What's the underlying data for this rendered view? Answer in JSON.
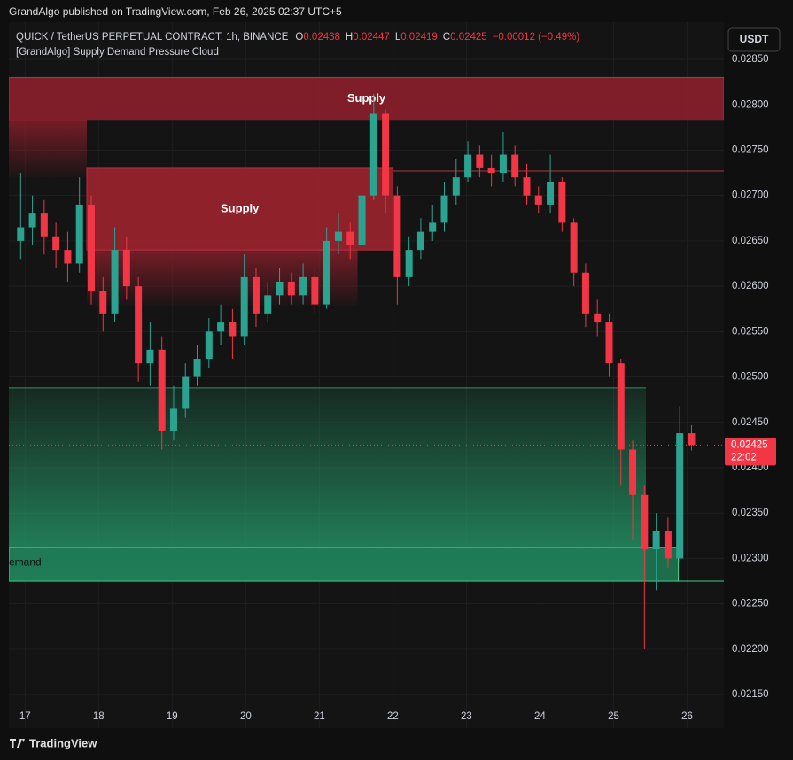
{
  "header": {
    "publisher": "GrandAlgo published on TradingView.com, Feb 26, 2025 02:37 UTC+5"
  },
  "legend": {
    "symbol": "QUICK / TetherUS PERPETUAL CONTRACT, 1h, BINANCE",
    "ohlc": [
      {
        "label": "O",
        "value": "0.02438"
      },
      {
        "label": "H",
        "value": "0.02447"
      },
      {
        "label": "L",
        "value": "0.02419"
      },
      {
        "label": "C",
        "value": "0.02425"
      }
    ],
    "change": "−0.00012 (−0.49%)",
    "indicator": "[GrandAlgo] Supply Demand Pressure Cloud"
  },
  "currency_button": "USDT",
  "footer": {
    "brand": "TradingView"
  },
  "chart_data": {
    "type": "candlestick",
    "x": [
      16.94,
      17.1,
      17.26,
      17.42,
      17.58,
      17.74,
      17.9,
      18.06,
      18.22,
      18.38,
      18.54,
      18.7,
      18.86,
      19.02,
      19.18,
      19.34,
      19.5,
      19.66,
      19.82,
      19.98,
      20.14,
      20.3,
      20.46,
      20.62,
      20.78,
      20.94,
      21.1,
      21.26,
      21.42,
      21.58,
      21.74,
      21.9,
      22.06,
      22.22,
      22.38,
      22.54,
      22.7,
      22.86,
      23.02,
      23.18,
      23.34,
      23.5,
      23.66,
      23.82,
      23.98,
      24.14,
      24.3,
      24.46,
      24.62,
      24.78,
      24.94,
      25.1,
      25.26,
      25.42,
      25.58,
      25.74,
      25.9,
      26.06
    ],
    "open": [
      0.0265,
      0.02665,
      0.0268,
      0.02655,
      0.0264,
      0.02625,
      0.0269,
      0.02595,
      0.0257,
      0.0264,
      0.026,
      0.02515,
      0.0253,
      0.0244,
      0.02465,
      0.025,
      0.0252,
      0.0255,
      0.0256,
      0.02545,
      0.0261,
      0.0257,
      0.0259,
      0.02605,
      0.0259,
      0.0261,
      0.0258,
      0.0265,
      0.0266,
      0.02645,
      0.027,
      0.0279,
      0.027,
      0.0261,
      0.0264,
      0.0266,
      0.0267,
      0.027,
      0.0272,
      0.02745,
      0.0273,
      0.02725,
      0.02745,
      0.0272,
      0.027,
      0.0269,
      0.02715,
      0.0267,
      0.02615,
      0.0257,
      0.0256,
      0.02515,
      0.0242,
      0.0237,
      0.0231,
      0.0233,
      0.023,
      0.02438
    ],
    "high": [
      0.02725,
      0.027,
      0.02695,
      0.0267,
      0.0266,
      0.0272,
      0.027,
      0.0261,
      0.02665,
      0.02655,
      0.0261,
      0.0256,
      0.02545,
      0.0249,
      0.02515,
      0.02535,
      0.02565,
      0.0258,
      0.02575,
      0.02635,
      0.0262,
      0.02605,
      0.0262,
      0.02615,
      0.02625,
      0.0262,
      0.02665,
      0.0268,
      0.0267,
      0.02715,
      0.02812,
      0.02795,
      0.0271,
      0.02655,
      0.02675,
      0.0269,
      0.02715,
      0.0274,
      0.0276,
      0.02755,
      0.02745,
      0.0277,
      0.02755,
      0.02735,
      0.0271,
      0.02745,
      0.0272,
      0.02675,
      0.02625,
      0.02585,
      0.0257,
      0.0252,
      0.0243,
      0.0238,
      0.0235,
      0.02345,
      0.02468,
      0.02447
    ],
    "low": [
      0.0263,
      0.02645,
      0.02635,
      0.0262,
      0.02605,
      0.02615,
      0.0258,
      0.0255,
      0.0256,
      0.02585,
      0.02495,
      0.0249,
      0.0242,
      0.0243,
      0.02455,
      0.0249,
      0.0251,
      0.02535,
      0.0252,
      0.02535,
      0.02555,
      0.0256,
      0.0258,
      0.0258,
      0.0258,
      0.0257,
      0.02575,
      0.02635,
      0.0263,
      0.0264,
      0.02695,
      0.0268,
      0.0258,
      0.026,
      0.0263,
      0.0265,
      0.0266,
      0.0269,
      0.02715,
      0.0272,
      0.0271,
      0.02715,
      0.0271,
      0.0269,
      0.0268,
      0.0268,
      0.0266,
      0.026,
      0.02555,
      0.02545,
      0.025,
      0.0238,
      0.0232,
      0.022,
      0.02265,
      0.0229,
      0.02295,
      0.02419
    ],
    "close": [
      0.02665,
      0.0268,
      0.02655,
      0.0264,
      0.02625,
      0.0269,
      0.02595,
      0.0257,
      0.0264,
      0.026,
      0.02515,
      0.0253,
      0.0244,
      0.02465,
      0.025,
      0.0252,
      0.0255,
      0.0256,
      0.02545,
      0.0261,
      0.0257,
      0.0259,
      0.02605,
      0.0259,
      0.0261,
      0.0258,
      0.0265,
      0.0266,
      0.02645,
      0.027,
      0.0279,
      0.027,
      0.0261,
      0.0264,
      0.0266,
      0.0267,
      0.027,
      0.0272,
      0.02745,
      0.0273,
      0.02725,
      0.02745,
      0.0272,
      0.027,
      0.0269,
      0.02715,
      0.0267,
      0.02615,
      0.0257,
      0.0256,
      0.02515,
      0.0242,
      0.0237,
      0.0231,
      0.0233,
      0.023,
      0.02438,
      0.02425
    ],
    "up_color": "#2aa491",
    "down_color": "#f23645",
    "xlim": [
      16.78,
      26.5
    ],
    "xticks": [
      17,
      18,
      19,
      20,
      21,
      22,
      23,
      24,
      25,
      26
    ],
    "ylim": [
      0.02113,
      0.02891
    ],
    "yticks": [
      {
        "value": 0.0215,
        "label": "0.02150"
      },
      {
        "value": 0.022,
        "label": "0.02200"
      },
      {
        "value": 0.0225,
        "label": "0.02250"
      },
      {
        "value": 0.023,
        "label": "0.02300"
      },
      {
        "value": 0.0235,
        "label": "0.02350"
      },
      {
        "value": 0.024,
        "label": "0.02400"
      },
      {
        "value": 0.0245,
        "label": "0.02450"
      },
      {
        "value": 0.025,
        "label": "0.02500"
      },
      {
        "value": 0.0255,
        "label": "0.02550"
      },
      {
        "value": 0.026,
        "label": "0.02600"
      },
      {
        "value": 0.0265,
        "label": "0.02650"
      },
      {
        "value": 0.027,
        "label": "0.02700"
      },
      {
        "value": 0.0275,
        "label": "0.02750"
      },
      {
        "value": 0.028,
        "label": "0.02800"
      },
      {
        "value": 0.0285,
        "label": "0.02850"
      }
    ],
    "grid": true,
    "clouds": [
      {
        "top": 0.02488,
        "bottom": 0.02275,
        "from": 16.78,
        "to": 25.44,
        "color": "#26a36f"
      },
      {
        "top": 0.02783,
        "bottom": 0.0272,
        "from": 16.78,
        "to": 17.84,
        "color": "#8e1f2b"
      },
      {
        "top": 0.0264,
        "bottom": 0.02578,
        "from": 17.84,
        "to": 21.52,
        "color": "#8e1f2b"
      }
    ],
    "zones": [
      {
        "label": "Supply",
        "top": 0.0283,
        "bottom": 0.02783,
        "from": 16.78,
        "to": 26.5,
        "color": "#8e1f2b",
        "border": "#c0303e"
      },
      {
        "label": "Supply",
        "top": 0.0273,
        "bottom": 0.0264,
        "from": 17.84,
        "to": 22.0,
        "color": "#a0232f",
        "border": "#b2323f"
      },
      {
        "label": "emand",
        "top": 0.02312,
        "bottom": 0.02275,
        "from": 16.78,
        "to": 25.88,
        "color": "#1f7a55",
        "border": "#3ecf8e"
      }
    ],
    "levels": [
      {
        "value": 0.02727,
        "from": 22.0,
        "to": 26.5,
        "color": "#b2323f"
      },
      {
        "value": 0.02275,
        "from": 25.88,
        "to": 26.5,
        "color": "#3ecf8e"
      },
      {
        "value": 0.02488,
        "from": 16.78,
        "to": 25.44,
        "color": "#2e8f68"
      }
    ],
    "countdown": "22:02"
  }
}
